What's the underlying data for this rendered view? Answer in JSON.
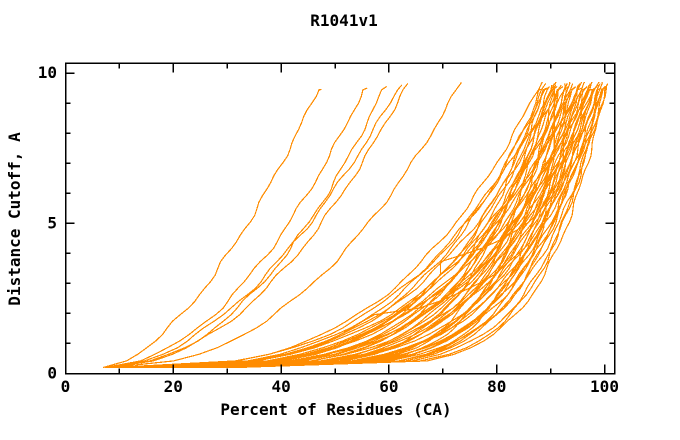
{
  "chart_data": {
    "type": "line",
    "title": "R1041v1",
    "xlabel": "Percent of Residues (CA)",
    "ylabel": "Distance Cutoff, A",
    "xlim": [
      0,
      102
    ],
    "ylim": [
      0,
      10.33
    ],
    "grid": false,
    "legend": "none",
    "x_axis": {
      "major_ticks": [
        {
          "value": 0,
          "label": "0"
        },
        {
          "value": 20,
          "label": "20"
        },
        {
          "value": 40,
          "label": "40"
        },
        {
          "value": 60,
          "label": "60"
        },
        {
          "value": 80,
          "label": "80"
        },
        {
          "value": 100,
          "label": "100"
        }
      ],
      "minor_ticks": [
        10,
        30,
        50,
        70,
        90
      ]
    },
    "y_axis": {
      "major_ticks": [
        {
          "value": 0,
          "label": "0"
        },
        {
          "value": 5,
          "label": "5"
        },
        {
          "value": 10,
          "label": "10"
        }
      ],
      "minor_ticks": [
        1,
        2,
        3,
        4,
        6,
        7,
        8,
        9
      ]
    },
    "curve_color": "#FF8C00",
    "axis_color": "#000000",
    "background_color": "#FFFFFF",
    "curves_start_percent": 6.8,
    "curves_cutoff_span": [
      0.2,
      9.7
    ],
    "curve_format": "[x_top_percent_at_cutoff_9.7, shape_exponent, optional_vertical_above_cutoff]",
    "curves": [
      [
        47.5,
        0.6
      ],
      [
        56.0,
        0.52
      ],
      [
        59.6,
        0.48
      ],
      [
        62.4,
        0.55
      ],
      [
        63.5,
        0.5
      ],
      [
        73.4,
        0.45
      ],
      [
        88.2,
        0.32
      ],
      [
        89.5,
        0.3
      ],
      [
        91.2,
        0.33
      ],
      [
        90.4,
        0.3,
        2.0
      ],
      [
        92.6,
        0.28,
        3.5
      ],
      [
        88.5,
        0.2
      ],
      [
        88.9,
        0.16
      ],
      [
        89.3,
        0.24
      ],
      [
        89.8,
        0.14
      ],
      [
        90.2,
        0.19
      ],
      [
        90.7,
        0.26
      ],
      [
        91.0,
        0.13
      ],
      [
        91.5,
        0.21
      ],
      [
        91.9,
        0.17
      ],
      [
        92.3,
        0.24
      ],
      [
        92.8,
        0.15
      ],
      [
        93.1,
        0.2
      ],
      [
        93.5,
        0.12
      ],
      [
        93.9,
        0.23
      ],
      [
        94.3,
        0.16
      ],
      [
        94.7,
        0.27
      ],
      [
        95.1,
        0.19
      ],
      [
        95.4,
        0.14
      ],
      [
        95.8,
        0.22
      ],
      [
        96.1,
        0.17
      ],
      [
        96.5,
        0.13
      ],
      [
        96.8,
        0.2
      ],
      [
        97.1,
        0.15
      ],
      [
        97.4,
        0.25
      ],
      [
        97.7,
        0.18
      ],
      [
        98.0,
        0.13
      ],
      [
        98.3,
        0.16
      ],
      [
        98.6,
        0.21
      ],
      [
        98.9,
        0.14
      ],
      [
        99.2,
        0.18
      ],
      [
        99.5,
        0.12
      ],
      [
        99.8,
        0.16
      ],
      [
        100.0,
        0.13
      ],
      [
        100.2,
        0.19
      ],
      [
        100.4,
        0.12
      ],
      [
        100.6,
        0.15
      ],
      [
        99.0,
        0.26
      ],
      [
        97.9,
        0.29
      ],
      [
        95.9,
        0.31
      ],
      [
        93.3,
        0.28
      ],
      [
        90.9,
        0.22
      ],
      [
        94.1,
        0.19
      ],
      [
        96.3,
        0.24
      ],
      [
        98.1,
        0.22
      ],
      [
        99.4,
        0.2
      ],
      [
        100.1,
        0.17
      ],
      [
        92.0,
        0.3
      ],
      [
        89.1,
        0.28
      ]
    ]
  }
}
